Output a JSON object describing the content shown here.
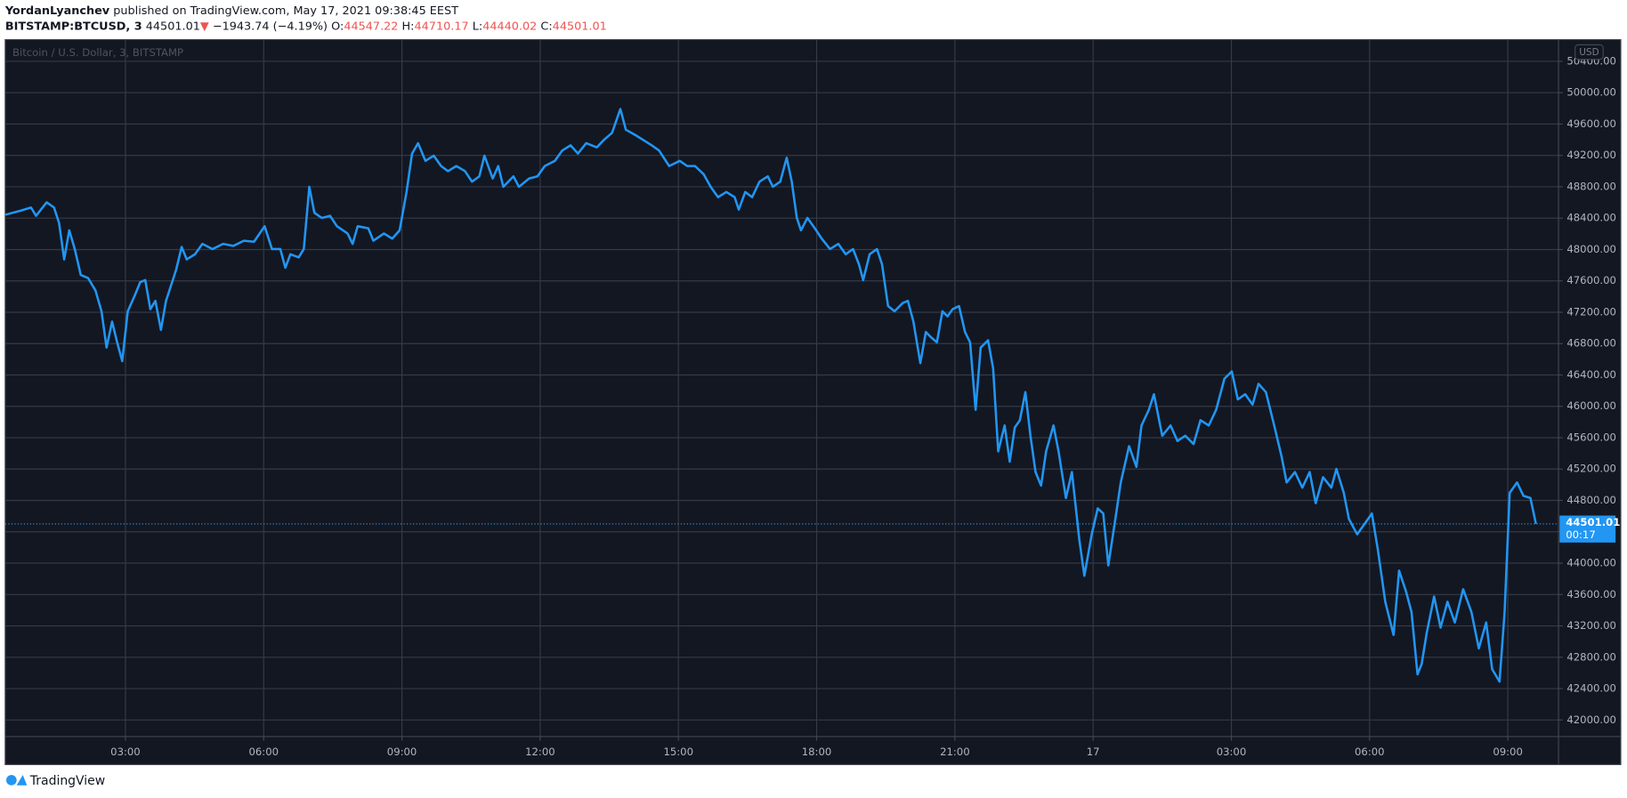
{
  "header": {
    "author": "YordanLyanchev",
    "published": "published on TradingView.com, May 17, 2021 09:38:45 EEST",
    "symbol": "BITSTAMP:BTCUSD, 3",
    "last": "44501.01",
    "arrow": "▼",
    "change": "−1943.74 (−4.19%)",
    "o_label": "O:",
    "o": "44547.22",
    "h_label": "H:",
    "h": "44710.17",
    "l_label": "L:",
    "l": "44440.02",
    "c_label": "C:",
    "c": "44501.01"
  },
  "footer": {
    "brand": "TradingView"
  },
  "chart_data": {
    "type": "line",
    "currency": "USD",
    "countdown": "00:17",
    "series": [
      {
        "name": "Bitcoin / U.S. Dollar, 3, BITSTAMP",
        "color": "#2196f3",
        "x": [
          0.39,
          0.73,
          0.95,
          1.06,
          1.29,
          1.45,
          1.56,
          1.67,
          1.78,
          1.9,
          2.03,
          2.19,
          2.35,
          2.48,
          2.59,
          2.71,
          2.82,
          2.93,
          3.05,
          3.2,
          3.32,
          3.43,
          3.54,
          3.65,
          3.77,
          3.88,
          3.99,
          4.1,
          4.22,
          4.33,
          4.51,
          4.67,
          4.89,
          5.12,
          5.34,
          5.57,
          5.79,
          6.02,
          6.18,
          6.36,
          6.47,
          6.58,
          6.76,
          6.87,
          6.99,
          7.1,
          7.26,
          7.44,
          7.59,
          7.82,
          7.93,
          8.04,
          8.27,
          8.38,
          8.61,
          8.79,
          8.95,
          9.1,
          9.22,
          9.35,
          9.51,
          9.69,
          9.85,
          10.0,
          10.18,
          10.37,
          10.52,
          10.68,
          10.79,
          10.97,
          11.09,
          11.2,
          11.42,
          11.54,
          11.76,
          11.94,
          12.1,
          12.32,
          12.48,
          12.66,
          12.82,
          13.0,
          13.23,
          13.38,
          13.56,
          13.74,
          13.86,
          14.06,
          14.24,
          14.42,
          14.58,
          14.8,
          15.03,
          15.19,
          15.36,
          15.55,
          15.7,
          15.86,
          16.04,
          16.22,
          16.31,
          16.45,
          16.6,
          16.76,
          16.94,
          17.05,
          17.21,
          17.35,
          17.46,
          17.57,
          17.66,
          17.8,
          17.96,
          18.11,
          18.29,
          18.47,
          18.63,
          18.79,
          18.92,
          19.01,
          19.15,
          19.31,
          19.42,
          19.55,
          19.69,
          19.87,
          19.98,
          20.1,
          20.25,
          20.37,
          20.48,
          20.61,
          20.73,
          20.84,
          20.95,
          21.09,
          21.22,
          21.33,
          21.45,
          21.56,
          21.72,
          21.83,
          21.94,
          22.08,
          22.19,
          22.3,
          22.41,
          22.53,
          22.64,
          22.75,
          22.87,
          22.98,
          23.14,
          23.25,
          23.41,
          23.54,
          23.7,
          23.81,
          23.97,
          24.1,
          24.22,
          24.33,
          24.49,
          24.6,
          24.78,
          24.94,
          25.05,
          25.21,
          25.32,
          25.5,
          25.68,
          25.83,
          26.0,
          26.18,
          26.33,
          26.51,
          26.67,
          26.85,
          27.01,
          27.14,
          27.3,
          27.46,
          27.59,
          27.75,
          27.93,
          28.09,
          28.2,
          28.38,
          28.54,
          28.7,
          28.83,
          28.99,
          29.17,
          29.28,
          29.44,
          29.55,
          29.73,
          29.89,
          30.05,
          30.18,
          30.34,
          30.52,
          30.64,
          30.79,
          30.91,
          31.04,
          31.13,
          31.24,
          31.4,
          31.54,
          31.69,
          31.85,
          32.03,
          32.21,
          32.37,
          32.53,
          32.66,
          32.82,
          32.93,
          33.04,
          33.2,
          33.34,
          33.49,
          33.61
        ],
        "values": [
          48443,
          48496,
          48536,
          48430,
          48602,
          48536,
          48337,
          47874,
          48245,
          48006,
          47676,
          47636,
          47477,
          47213,
          46750,
          47080,
          46816,
          46577,
          47213,
          47411,
          47583,
          47610,
          47239,
          47345,
          46975,
          47345,
          47543,
          47742,
          48033,
          47874,
          47940,
          48072,
          48006,
          48072,
          48046,
          48112,
          48099,
          48297,
          48006,
          48006,
          47768,
          47940,
          47900,
          48006,
          48800,
          48469,
          48403,
          48430,
          48297,
          48205,
          48072,
          48297,
          48271,
          48112,
          48205,
          48139,
          48245,
          48734,
          49224,
          49356,
          49131,
          49197,
          49065,
          48999,
          49065,
          48999,
          48866,
          48933,
          49197,
          48906,
          49065,
          48800,
          48933,
          48800,
          48906,
          48933,
          49065,
          49131,
          49263,
          49329,
          49224,
          49356,
          49303,
          49396,
          49488,
          49792,
          49528,
          49462,
          49396,
          49329,
          49263,
          49065,
          49131,
          49065,
          49065,
          48959,
          48800,
          48668,
          48734,
          48668,
          48509,
          48734,
          48668,
          48866,
          48933,
          48800,
          48866,
          49171,
          48866,
          48403,
          48245,
          48403,
          48271,
          48139,
          48006,
          48072,
          47940,
          48006,
          47808,
          47610,
          47940,
          48006,
          47808,
          47279,
          47213,
          47318,
          47345,
          47080,
          46551,
          46948,
          46882,
          46816,
          47213,
          47147,
          47239,
          47279,
          46948,
          46816,
          45956,
          46750,
          46842,
          46485,
          45426,
          45756,
          45294,
          45730,
          45822,
          46181,
          45625,
          45162,
          44990,
          45426,
          45756,
          45426,
          44831,
          45162,
          44302,
          43839,
          44368,
          44699,
          44633,
          43971,
          44593,
          45029,
          45492,
          45228,
          45756,
          45956,
          46154,
          45625,
          45756,
          45558,
          45625,
          45519,
          45823,
          45756,
          45956,
          46353,
          46445,
          46088,
          46154,
          46022,
          46287,
          46181,
          45756,
          45360,
          45029,
          45162,
          44963,
          45162,
          44765,
          45096,
          44963,
          45202,
          44897,
          44566,
          44368,
          44500,
          44633,
          44170,
          43508,
          43085,
          43905,
          43640,
          43376,
          42582,
          42714,
          43111,
          43574,
          43178,
          43508,
          43243,
          43667,
          43376,
          42913,
          43243,
          42648,
          42489,
          43376,
          44897,
          45029,
          44858,
          44831,
          44501.01
        ]
      }
    ],
    "xlim": [
      0.39,
      34.1
    ],
    "xticks": [
      {
        "value": 3,
        "label": "03:00"
      },
      {
        "value": 6,
        "label": "06:00"
      },
      {
        "value": 9,
        "label": "09:00"
      },
      {
        "value": 12,
        "label": "12:00"
      },
      {
        "value": 15,
        "label": "15:00"
      },
      {
        "value": 18,
        "label": "18:00"
      },
      {
        "value": 21,
        "label": "21:00"
      },
      {
        "value": 24,
        "label": "17"
      },
      {
        "value": 27,
        "label": "03:00"
      },
      {
        "value": 30,
        "label": "06:00"
      },
      {
        "value": 33,
        "label": "09:00"
      }
    ],
    "ylim": [
      41788,
      50677
    ],
    "yticks": [
      {
        "value": 42000,
        "label": "42000.00"
      },
      {
        "value": 42400,
        "label": "42400.00"
      },
      {
        "value": 42800,
        "label": "42800.00"
      },
      {
        "value": 43200,
        "label": "43200.00"
      },
      {
        "value": 43600,
        "label": "43600.00"
      },
      {
        "value": 44000,
        "label": "44000.00"
      },
      {
        "value": 44400,
        "label": "44400.00"
      },
      {
        "value": 44800,
        "label": "44800.00"
      },
      {
        "value": 45200,
        "label": "45200.00"
      },
      {
        "value": 45600,
        "label": "45600.00"
      },
      {
        "value": 46000,
        "label": "46000.00"
      },
      {
        "value": 46400,
        "label": "46400.00"
      },
      {
        "value": 46800,
        "label": "46800.00"
      },
      {
        "value": 47200,
        "label": "47200.00"
      },
      {
        "value": 47600,
        "label": "47600.00"
      },
      {
        "value": 48000,
        "label": "48000.00"
      },
      {
        "value": 48400,
        "label": "48400.00"
      },
      {
        "value": 48800,
        "label": "48800.00"
      },
      {
        "value": 49200,
        "label": "49200.00"
      },
      {
        "value": 49600,
        "label": "49600.00"
      },
      {
        "value": 50000,
        "label": "50000.00"
      },
      {
        "value": 50400,
        "label": "50400.00"
      }
    ],
    "grid": true
  }
}
